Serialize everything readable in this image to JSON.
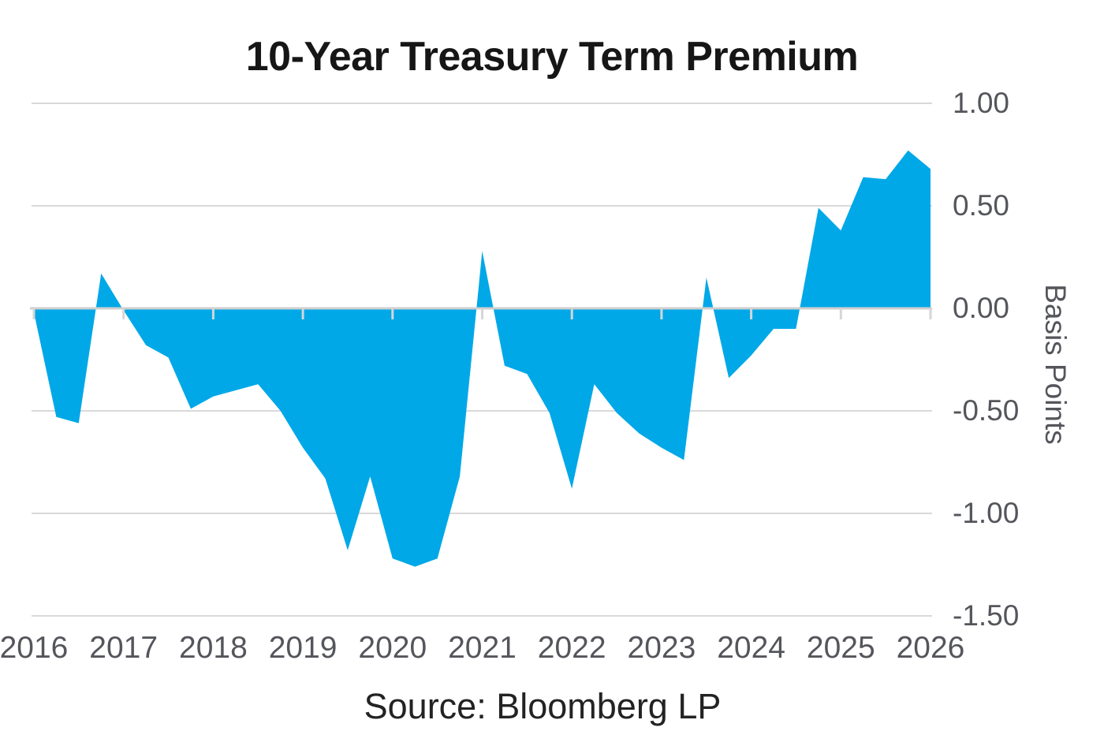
{
  "colors": {
    "series_fill": "#00a8e8",
    "gridline": "#d9d9d9",
    "zero_axis": "#cfcfcf",
    "tick_mark": "#d6d6d6",
    "axis_text": "#54565b",
    "title_text": "#161616"
  },
  "chart_data": {
    "type": "area",
    "title": "10-Year Treasury Term Premium",
    "ylabel": "Basis Points",
    "xlabel": "",
    "source": "Source: Bloomberg LP",
    "legend": "none",
    "grid": "horizontal",
    "xlim": [
      2016,
      2026
    ],
    "ylim": [
      -1.5,
      1.0
    ],
    "x_tick_labels": [
      "2016",
      "2017",
      "2018",
      "2019",
      "2020",
      "2021",
      "2022",
      "2023",
      "2024",
      "2025",
      "2026"
    ],
    "x_tick_values": [
      2016,
      2017,
      2018,
      2019,
      2020,
      2021,
      2022,
      2023,
      2024,
      2025,
      2026
    ],
    "y_tick_labels": [
      "1.00",
      "0.50",
      "0.00",
      "-0.50",
      "-1.00",
      "-1.50"
    ],
    "y_tick_values": [
      1.0,
      0.5,
      0.0,
      -0.5,
      -1.0,
      -1.5
    ],
    "series": [
      {
        "name": "10-Year Treasury Term Premium",
        "unit": "Basis Points",
        "x_start": 2016.0,
        "x_step": 0.25,
        "x": [
          2016.0,
          2016.25,
          2016.5,
          2016.75,
          2017.0,
          2017.25,
          2017.5,
          2017.75,
          2018.0,
          2018.25,
          2018.5,
          2018.75,
          2019.0,
          2019.25,
          2019.5,
          2019.75,
          2020.0,
          2020.25,
          2020.5,
          2020.75,
          2021.0,
          2021.25,
          2021.5,
          2021.75,
          2022.0,
          2022.25,
          2022.5,
          2022.75,
          2023.0,
          2023.25,
          2023.5,
          2023.75,
          2024.0,
          2024.25,
          2024.5,
          2024.75,
          2025.0,
          2025.25,
          2025.5,
          2025.75,
          2026.0
        ],
        "values": [
          -0.02,
          -0.53,
          -0.56,
          0.17,
          -0.01,
          -0.18,
          -0.24,
          -0.49,
          -0.43,
          -0.4,
          -0.37,
          -0.5,
          -0.68,
          -0.83,
          -1.18,
          -0.82,
          -1.22,
          -1.26,
          -1.22,
          -0.82,
          0.28,
          -0.28,
          -0.32,
          -0.51,
          -0.88,
          -0.37,
          -0.51,
          -0.61,
          -0.68,
          -0.74,
          0.15,
          -0.34,
          -0.23,
          -0.1,
          -0.1,
          0.49,
          0.38,
          0.64,
          0.63,
          0.77,
          0.68
        ]
      }
    ]
  }
}
